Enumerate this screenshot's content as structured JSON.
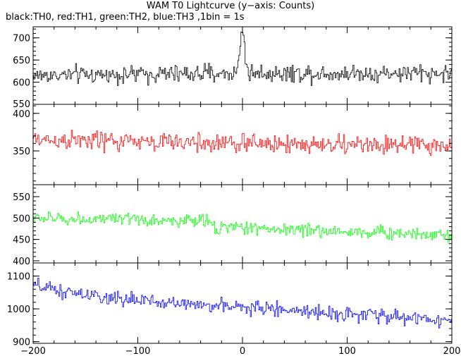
{
  "title": "WAM T0 Lightcurve (y−axis: Counts)",
  "subtitle": "black:TH0, red:TH1, green:TH2, blue:TH3 ,1bin = 1s",
  "chart_data": {
    "type": "line",
    "xlim": [
      -200,
      200
    ],
    "x_ticks": [
      -200,
      -100,
      0,
      100,
      200
    ],
    "x_tick_labels": [
      "−200",
      "−100",
      "0",
      "100",
      "200"
    ],
    "x_minor_tick_step": 20,
    "bin_seconds": 1,
    "xlabel": "",
    "grid": false,
    "panels": [
      {
        "name": "TH0",
        "color": "#000000",
        "ylim": [
          550,
          725
        ],
        "y_ticks": [
          550,
          600,
          650,
          700
        ],
        "y_tick_labels": [
          "550",
          "600",
          "650",
          "700"
        ],
        "y_minor_step": 10,
        "baseline": [
          [
            -200,
            615
          ],
          [
            -100,
            618
          ],
          [
            0,
            620
          ],
          [
            100,
            620
          ],
          [
            200,
            620
          ]
        ],
        "noise_amp": 26,
        "events": [
          {
            "x": 0,
            "peak": 720
          }
        ]
      },
      {
        "name": "TH1",
        "color": "#ff0000",
        "ylim": [
          305,
          412
        ],
        "y_ticks": [
          350,
          400
        ],
        "y_tick_labels": [
          "350",
          "400"
        ],
        "y_minor_step": 10,
        "baseline": [
          [
            -200,
            365
          ],
          [
            -100,
            362
          ],
          [
            0,
            360
          ],
          [
            100,
            358
          ],
          [
            200,
            357
          ]
        ],
        "noise_amp": 17,
        "events": []
      },
      {
        "name": "TH2",
        "color": "#00ff00",
        "ylim": [
          395,
          578
        ],
        "y_ticks": [
          400,
          450,
          500,
          550
        ],
        "y_tick_labels": [
          "400",
          "450",
          "500",
          "550"
        ],
        "y_minor_step": 10,
        "baseline": [
          [
            -200,
            500
          ],
          [
            -100,
            495
          ],
          [
            -30,
            492
          ],
          [
            -25,
            478
          ],
          [
            0,
            478
          ],
          [
            100,
            468
          ],
          [
            200,
            462
          ]
        ],
        "noise_amp": 20,
        "events": []
      },
      {
        "name": "TH3",
        "color": "#0000ff",
        "ylim": [
          895,
          1140
        ],
        "y_ticks": [
          900,
          1000,
          1100
        ],
        "y_tick_labels": [
          "900",
          "1000",
          "1100"
        ],
        "y_minor_step": 20,
        "baseline": [
          [
            -200,
            1070
          ],
          [
            -150,
            1040
          ],
          [
            -100,
            1025
          ],
          [
            0,
            1005
          ],
          [
            100,
            985
          ],
          [
            200,
            965
          ]
        ],
        "noise_amp": 28,
        "events": []
      }
    ]
  }
}
